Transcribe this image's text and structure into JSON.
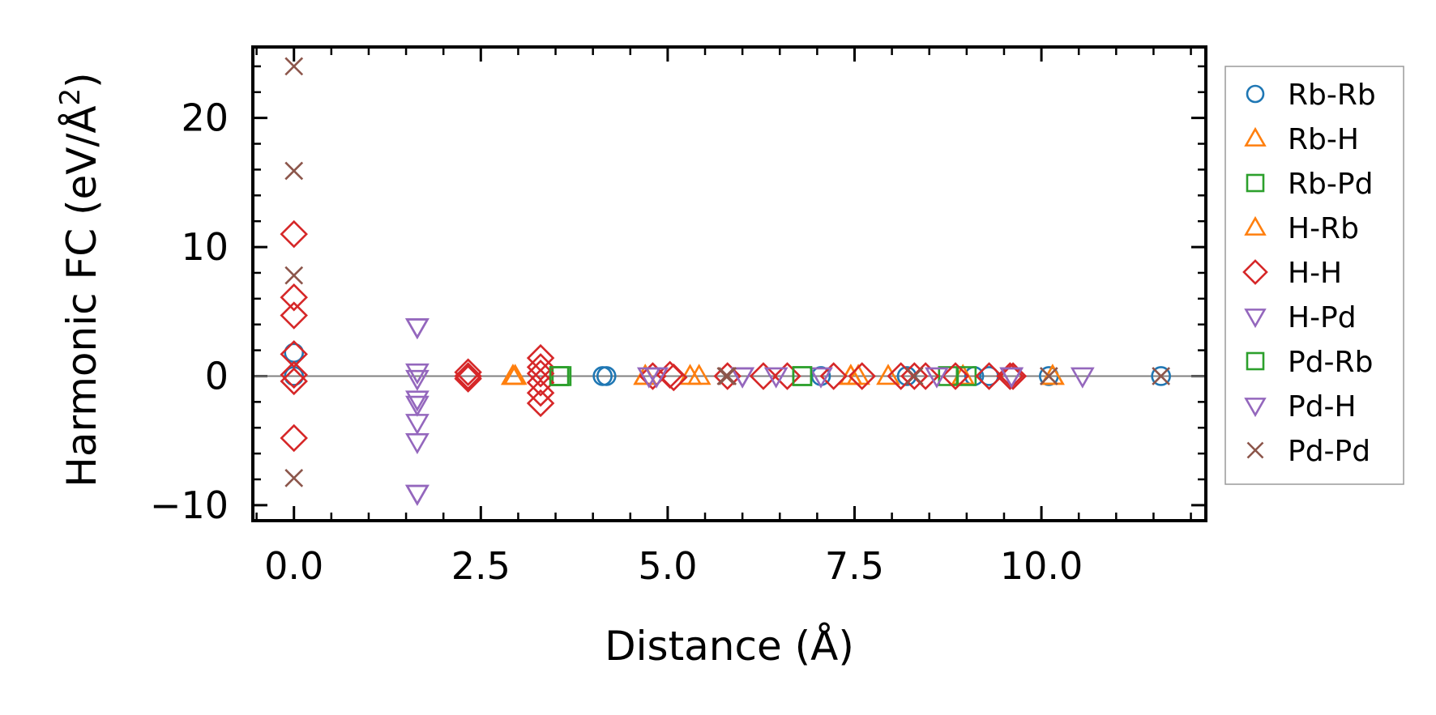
{
  "chart_data": {
    "type": "scatter",
    "title": "",
    "xlabel": "Distance (Å)",
    "ylabel": "Harmonic FC (eV/Å²)",
    "ylabel_parts": {
      "main": "Harmonic FC (eV/Å",
      "sup": "2",
      "close": ")"
    },
    "xlim": [
      -0.55,
      12.2
    ],
    "ylim": [
      -11.2,
      25.5
    ],
    "xticks": [
      0.0,
      2.5,
      5.0,
      7.5,
      10.0
    ],
    "xtick_labels": [
      "0.0",
      "2.5",
      "5.0",
      "7.5",
      "10.0"
    ],
    "yticks": [
      -10,
      0,
      10,
      20
    ],
    "ytick_labels": [
      "−10",
      "0",
      "10",
      "20"
    ],
    "zero_line": 0,
    "grid": false,
    "legend_position": "outside-right",
    "series": [
      {
        "name": "Rb-Rb",
        "marker": "circle",
        "color": "#1f77b4",
        "points": [
          [
            0.0,
            1.8
          ],
          [
            0.0,
            0.0
          ],
          [
            4.13,
            0.0
          ],
          [
            4.18,
            0.0
          ],
          [
            7.05,
            0.0
          ],
          [
            8.2,
            0.0
          ],
          [
            9.1,
            0.0
          ],
          [
            9.3,
            0.0
          ],
          [
            10.1,
            0.0
          ],
          [
            11.6,
            0.0
          ]
        ]
      },
      {
        "name": "Rb-H",
        "marker": "triangle-up",
        "color": "#ff7f0e",
        "points": [
          [
            2.93,
            0.0
          ],
          [
            2.96,
            0.0
          ],
          [
            4.7,
            0.0
          ],
          [
            5.3,
            0.0
          ],
          [
            5.42,
            0.0
          ],
          [
            7.45,
            0.0
          ],
          [
            7.55,
            0.0
          ],
          [
            7.95,
            0.0
          ],
          [
            8.95,
            0.0
          ],
          [
            10.15,
            0.0
          ]
        ]
      },
      {
        "name": "Rb-Pd",
        "marker": "square",
        "color": "#2ca02c",
        "points": [
          [
            3.55,
            0.0
          ],
          [
            3.58,
            0.0
          ],
          [
            6.8,
            0.0
          ],
          [
            8.75,
            0.0
          ],
          [
            9.0,
            0.0
          ]
        ]
      },
      {
        "name": "H-Rb",
        "marker": "triangle-up",
        "color": "#ff7f0e",
        "points": [
          [
            2.93,
            0.0
          ],
          [
            4.7,
            0.0
          ],
          [
            7.45,
            0.0
          ],
          [
            10.15,
            0.0
          ]
        ]
      },
      {
        "name": "H-H",
        "marker": "diamond",
        "color": "#d62728",
        "points": [
          [
            0.0,
            11.0
          ],
          [
            0.0,
            6.1
          ],
          [
            0.0,
            4.7
          ],
          [
            0.0,
            1.7
          ],
          [
            0.0,
            0.1
          ],
          [
            0.0,
            -0.4
          ],
          [
            0.0,
            -4.8
          ],
          [
            2.33,
            0.3
          ],
          [
            2.33,
            0.0
          ],
          [
            2.33,
            -0.2
          ],
          [
            3.3,
            1.4
          ],
          [
            3.3,
            0.7
          ],
          [
            3.3,
            0.2
          ],
          [
            3.3,
            -0.5
          ],
          [
            3.3,
            -1.3
          ],
          [
            3.3,
            -2.1
          ],
          [
            4.8,
            0.0
          ],
          [
            5.03,
            0.1
          ],
          [
            5.08,
            -0.1
          ],
          [
            5.8,
            0.0
          ],
          [
            6.28,
            0.0
          ],
          [
            6.6,
            0.0
          ],
          [
            7.22,
            0.0
          ],
          [
            7.6,
            0.0
          ],
          [
            8.12,
            0.0
          ],
          [
            8.3,
            0.0
          ],
          [
            8.45,
            0.0
          ],
          [
            8.85,
            0.0
          ],
          [
            9.3,
            0.0
          ],
          [
            9.58,
            0.0
          ],
          [
            9.62,
            0.0
          ]
        ]
      },
      {
        "name": "H-Pd",
        "marker": "triangle-down",
        "color": "#9467bd",
        "points": [
          [
            1.65,
            3.8
          ],
          [
            1.65,
            0.3
          ],
          [
            1.65,
            -0.2
          ],
          [
            1.65,
            -1.8
          ],
          [
            1.65,
            -2.2
          ],
          [
            1.65,
            -3.6
          ],
          [
            1.65,
            -5.1
          ],
          [
            1.65,
            -9.1
          ],
          [
            4.75,
            0.0
          ],
          [
            4.85,
            0.0
          ],
          [
            6.0,
            0.0
          ],
          [
            6.45,
            0.0
          ],
          [
            7.05,
            0.0
          ],
          [
            8.6,
            0.0
          ],
          [
            9.6,
            0.0
          ],
          [
            10.55,
            0.0
          ]
        ]
      },
      {
        "name": "Pd-Rb",
        "marker": "square",
        "color": "#2ca02c",
        "points": [
          [
            3.55,
            0.0
          ],
          [
            6.8,
            0.0
          ]
        ]
      },
      {
        "name": "Pd-H",
        "marker": "triangle-down",
        "color": "#9467bd",
        "points": [
          [
            1.65,
            3.8
          ],
          [
            1.65,
            -9.1
          ],
          [
            6.0,
            0.0
          ],
          [
            9.6,
            0.0
          ]
        ]
      },
      {
        "name": "Pd-Pd",
        "marker": "x",
        "color": "#8c564b",
        "points": [
          [
            0.0,
            24.0
          ],
          [
            0.0,
            15.9
          ],
          [
            0.0,
            7.8
          ],
          [
            0.0,
            -7.9
          ],
          [
            5.78,
            0.0
          ],
          [
            5.8,
            0.0
          ],
          [
            8.3,
            0.0
          ],
          [
            10.1,
            0.0
          ],
          [
            11.6,
            0.0
          ]
        ]
      }
    ]
  }
}
